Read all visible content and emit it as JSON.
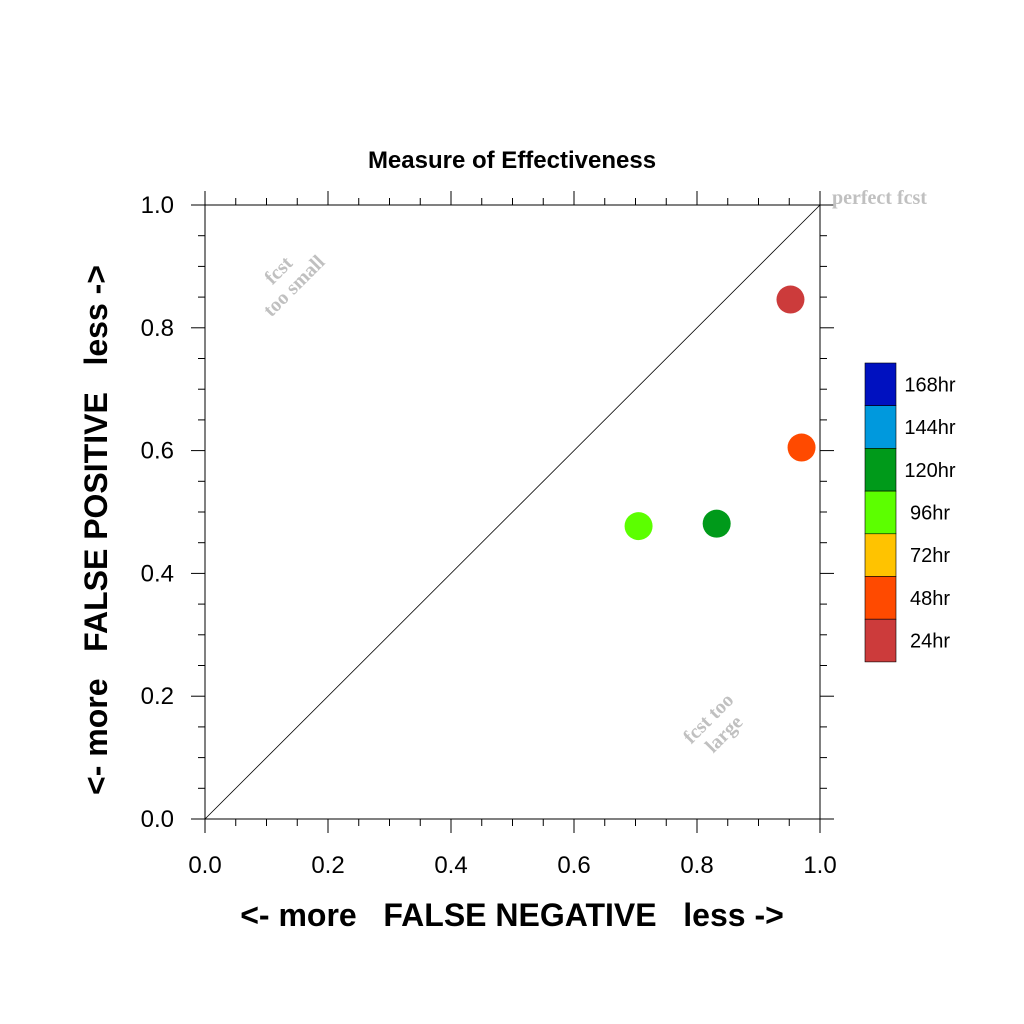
{
  "chart_data": {
    "type": "scatter",
    "title": "Measure of Effectiveness",
    "xlabel": "<- more   FALSE NEGATIVE   less ->",
    "ylabel": "<- more   FALSE POSITIVE   less ->",
    "xlim": [
      0.0,
      1.0
    ],
    "ylim": [
      0.0,
      1.0
    ],
    "x_ticks": [
      "0.0",
      "0.2",
      "0.4",
      "0.6",
      "0.8",
      "1.0"
    ],
    "y_ticks": [
      "0.0",
      "0.2",
      "0.4",
      "0.6",
      "0.8",
      "1.0"
    ],
    "grid": false,
    "reference_line": {
      "from": [
        0,
        0
      ],
      "to": [
        1,
        1
      ]
    },
    "annotations": {
      "perfect": "perfect fcst",
      "too_small_1": "fcst",
      "too_small_2": "too small",
      "too_large_1": "fcst too",
      "too_large_2": "large"
    },
    "points": [
      {
        "label": "24hr",
        "x": 0.952,
        "y": 0.846,
        "color": "#cc3b3b"
      },
      {
        "label": "48hr",
        "x": 0.97,
        "y": 0.605,
        "color": "#ff4a00"
      },
      {
        "label": "96hr",
        "x": 0.705,
        "y": 0.477,
        "color": "#5cff00"
      },
      {
        "label": "120hr",
        "x": 0.832,
        "y": 0.481,
        "color": "#009a1a"
      }
    ],
    "legend": {
      "placement": "right",
      "entries": [
        {
          "label": "168hr",
          "color": "#0011c0"
        },
        {
          "label": "144hr",
          "color": "#0099dd"
        },
        {
          "label": "120hr",
          "color": "#009a1a"
        },
        {
          "label": "96hr",
          "color": "#5cff00"
        },
        {
          "label": "72hr",
          "color": "#ffc300"
        },
        {
          "label": "48hr",
          "color": "#ff4a00"
        },
        {
          "label": "24hr",
          "color": "#cc3b3b"
        }
      ]
    }
  }
}
